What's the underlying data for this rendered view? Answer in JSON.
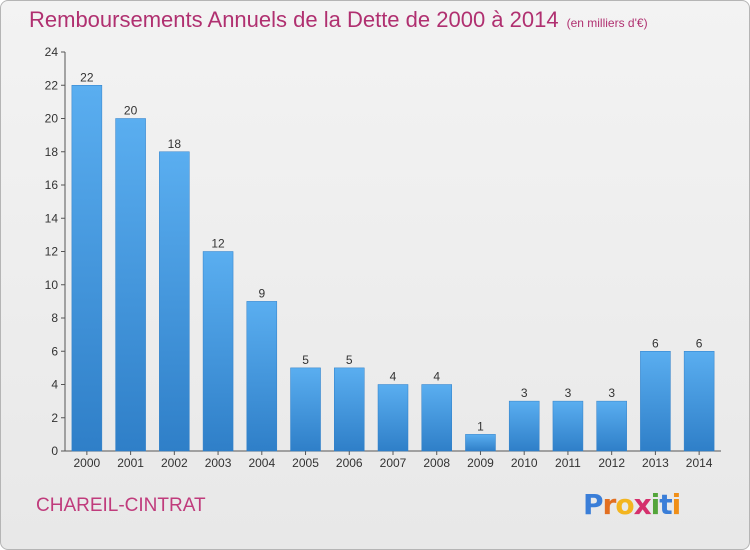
{
  "title": "Remboursements Annuels de la Dette de 2000 à 2014",
  "unit": "(en milliers d'€)",
  "commune": "CHAREIL-CINTRAT",
  "logo_text": "Proxiti",
  "chart_data": {
    "type": "bar",
    "categories": [
      "2000",
      "2001",
      "2002",
      "2003",
      "2004",
      "2005",
      "2006",
      "2007",
      "2008",
      "2009",
      "2010",
      "2011",
      "2012",
      "2013",
      "2014"
    ],
    "values": [
      22,
      20,
      18,
      12,
      9,
      5,
      5,
      4,
      4,
      1,
      3,
      3,
      3,
      6,
      6
    ],
    "ylim": [
      0,
      24
    ],
    "yticks": [
      0,
      2,
      4,
      6,
      8,
      10,
      12,
      14,
      16,
      18,
      20,
      22,
      24
    ],
    "title": "Remboursements Annuels de la Dette de 2000 à 2014",
    "xlabel": "",
    "ylabel": "",
    "grid": false,
    "bar_color": "#4a9be0"
  }
}
